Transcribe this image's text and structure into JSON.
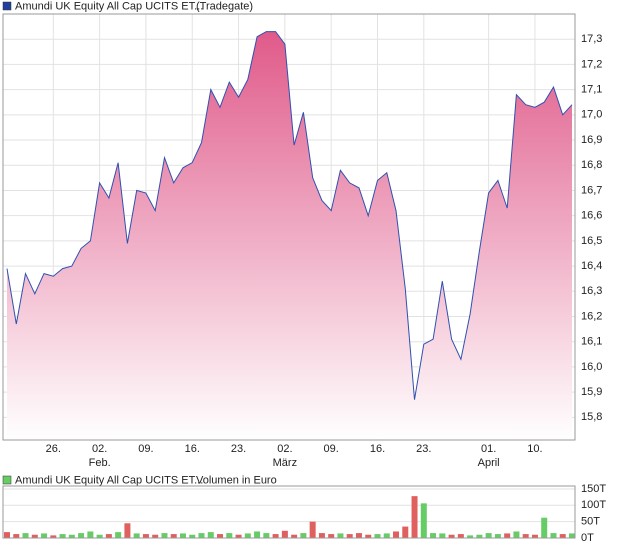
{
  "chart_data": [
    {
      "type": "area",
      "legend": "Amundi UK Equity All Cap UCITS ET...",
      "source": "(Tradegate)",
      "legend_color": "#1f3f99",
      "line_color": "#3050b0",
      "fill_top": "#e05a8a",
      "fill_bottom": "#ffffff",
      "grid": true,
      "categories": [
        null,
        null,
        null,
        null,
        null,
        "26.",
        null,
        null,
        null,
        null,
        "02.",
        null,
        null,
        null,
        null,
        "09.",
        null,
        null,
        null,
        null,
        "16.",
        null,
        null,
        null,
        null,
        "23.",
        null,
        null,
        null,
        null,
        "02.",
        null,
        null,
        null,
        null,
        "09.",
        null,
        null,
        null,
        null,
        "16.",
        null,
        null,
        null,
        null,
        "23.",
        null,
        null,
        null,
        null,
        null,
        null,
        "01.",
        null,
        null,
        null,
        null,
        "10.",
        null,
        null,
        null,
        null
      ],
      "months": [
        null,
        null,
        null,
        null,
        null,
        null,
        null,
        null,
        null,
        null,
        "Feb.",
        null,
        null,
        null,
        null,
        null,
        null,
        null,
        null,
        null,
        null,
        null,
        null,
        null,
        null,
        null,
        null,
        null,
        null,
        null,
        "März",
        null,
        null,
        null,
        null,
        null,
        null,
        null,
        null,
        null,
        null,
        null,
        null,
        null,
        null,
        null,
        null,
        null,
        null,
        null,
        null,
        null,
        "April",
        null,
        null,
        null,
        null,
        null,
        null,
        null,
        null,
        null
      ],
      "values": [
        16.39,
        16.17,
        16.37,
        16.29,
        16.37,
        16.36,
        16.39,
        16.4,
        16.47,
        16.5,
        16.73,
        16.67,
        16.81,
        16.49,
        16.7,
        16.69,
        16.62,
        16.83,
        16.73,
        16.79,
        16.81,
        16.89,
        17.1,
        17.03,
        17.13,
        17.07,
        17.14,
        17.31,
        17.33,
        17.33,
        17.28,
        16.88,
        17.01,
        16.75,
        16.66,
        16.62,
        16.78,
        16.73,
        16.71,
        16.6,
        16.74,
        16.77,
        16.62,
        16.31,
        15.87,
        16.09,
        16.11,
        16.34,
        16.11,
        16.03,
        16.21,
        16.46,
        16.69,
        16.74,
        16.63,
        17.08,
        17.04,
        17.03,
        17.05,
        17.11,
        17.0,
        17.04
      ],
      "ylim": [
        15.71,
        17.4
      ],
      "yticks": [
        {
          "value": 15.8,
          "label": "15,8"
        },
        {
          "value": 15.9,
          "label": "15,9"
        },
        {
          "value": 16.0,
          "label": "16,0"
        },
        {
          "value": 16.1,
          "label": "16,1"
        },
        {
          "value": 16.2,
          "label": "16,2"
        },
        {
          "value": 16.3,
          "label": "16,3"
        },
        {
          "value": 16.4,
          "label": "16,4"
        },
        {
          "value": 16.5,
          "label": "16,5"
        },
        {
          "value": 16.6,
          "label": "16,6"
        },
        {
          "value": 16.7,
          "label": "16,7"
        },
        {
          "value": 16.8,
          "label": "16,8"
        },
        {
          "value": 16.9,
          "label": "16,9"
        },
        {
          "value": 17.0,
          "label": "17,0"
        },
        {
          "value": 17.1,
          "label": "17,1"
        },
        {
          "value": 17.2,
          "label": "17,2"
        },
        {
          "value": 17.3,
          "label": "17,3"
        }
      ]
    },
    {
      "type": "bar",
      "legend": "Amundi UK Equity All Cap UCITS ET...",
      "subtitle": "Volumen in Euro",
      "legend_color": "#66cc66",
      "values": [
        18,
        12,
        15,
        10,
        14,
        8,
        12,
        10,
        15,
        20,
        10,
        12,
        18,
        45,
        14,
        12,
        10,
        15,
        12,
        14,
        10,
        15,
        18,
        12,
        15,
        10,
        14,
        20,
        15,
        12,
        22,
        10,
        15,
        50,
        15,
        12,
        14,
        12,
        15,
        10,
        12,
        14,
        20,
        35,
        128,
        106,
        15,
        14,
        10,
        12,
        8,
        10,
        15,
        12,
        14,
        20,
        12,
        10,
        62,
        15,
        12,
        14
      ],
      "colors": [
        "#e06060",
        "#e06060",
        "#66cc66",
        "#e06060",
        "#66cc66",
        "#e06060",
        "#66cc66",
        "#66cc66",
        "#66cc66",
        "#66cc66",
        "#66cc66",
        "#e06060",
        "#66cc66",
        "#e06060",
        "#66cc66",
        "#e06060",
        "#e06060",
        "#66cc66",
        "#e06060",
        "#66cc66",
        "#66cc66",
        "#66cc66",
        "#66cc66",
        "#e06060",
        "#66cc66",
        "#e06060",
        "#66cc66",
        "#66cc66",
        "#66cc66",
        "#e06060",
        "#e06060",
        "#e06060",
        "#66cc66",
        "#e06060",
        "#e06060",
        "#e06060",
        "#66cc66",
        "#e06060",
        "#e06060",
        "#e06060",
        "#66cc66",
        "#66cc66",
        "#e06060",
        "#e06060",
        "#e06060",
        "#66cc66",
        "#66cc66",
        "#66cc66",
        "#e06060",
        "#e06060",
        "#66cc66",
        "#66cc66",
        "#66cc66",
        "#66cc66",
        "#e06060",
        "#66cc66",
        "#e06060",
        "#e06060",
        "#66cc66",
        "#66cc66",
        "#e06060",
        "#66cc66"
      ],
      "ylim": [
        0,
        159
      ],
      "yticks": [
        {
          "value": 0,
          "label": "0T"
        },
        {
          "value": 50,
          "label": "50T"
        },
        {
          "value": 100,
          "label": "100T"
        },
        {
          "value": 150,
          "label": "150T"
        }
      ]
    }
  ]
}
